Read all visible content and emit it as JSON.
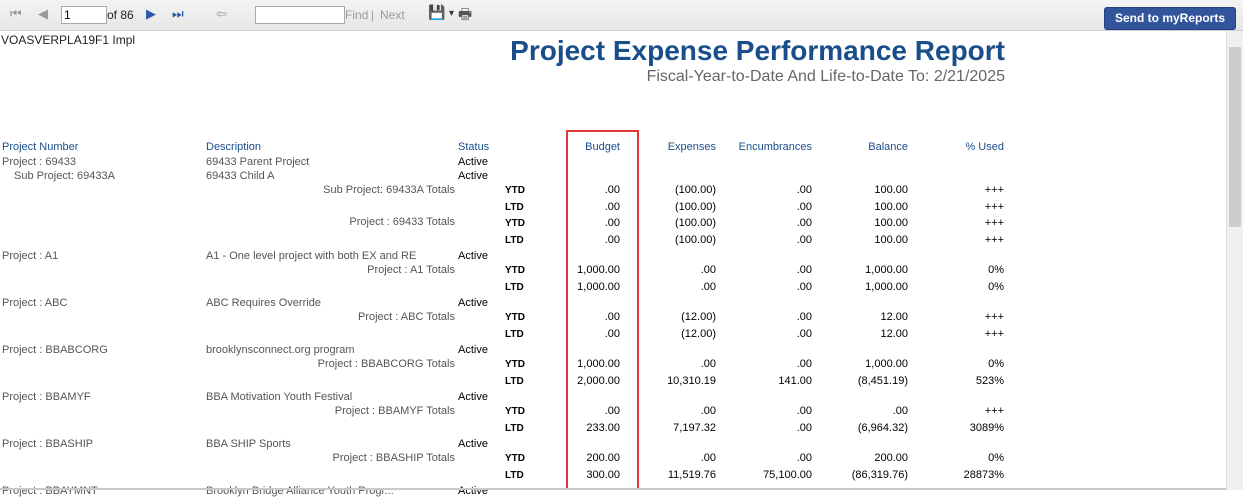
{
  "toolbar": {
    "first_icon": "⏮",
    "prev_icon": "◀",
    "page_value": "1",
    "of_label": "of 86",
    "next_icon": "▶",
    "last_icon": "⏭",
    "back_icon": "⇦",
    "find_value": "",
    "find_label": "Find",
    "separator": "|",
    "next_label": "Next",
    "export_icon": "💾",
    "dropdown_icon": "▾",
    "print_icon": "🖶",
    "send_label": "Send to myReports"
  },
  "report": {
    "logo_alt": "VOASVERPLA19F1 Impl",
    "title": "Project Expense Performance Report",
    "subtitle": "Fiscal-Year-to-Date And Life-to-Date To: 2/21/2025",
    "headers": {
      "project_number": "Project Number",
      "description": "Description",
      "status": "Status",
      "budget": "Budget",
      "expenses": "Expenses",
      "encumbrances": "Encumbrances",
      "balance": "Balance",
      "pct_used": "% Used"
    },
    "project_rows": [
      {
        "label": "Project : 69433",
        "desc": "69433 Parent Project",
        "status": "Active"
      },
      {
        "label": "Sub Project: 69433A",
        "desc": "69433 Child A",
        "status": "Active"
      },
      {
        "label": "Project : A1",
        "desc": "A1 - One level project with both EX and RE",
        "status": "Active"
      },
      {
        "label": "Project : ABC",
        "desc": "ABC Requires Override",
        "status": "Active"
      },
      {
        "label": "Project : BBABCORG",
        "desc": "brooklynsconnect.org program",
        "status": "Active"
      },
      {
        "label": "Project : BBAMYF",
        "desc": "BBA Motivation Youth Festival",
        "status": "Active"
      },
      {
        "label": "Project : BBASHIP",
        "desc": "BBA SHIP Sports",
        "status": "Active"
      },
      {
        "label": "Project : BBAYMNT",
        "desc": "Brooklyn Bridge Alliance Youth Progr...",
        "status": "Active"
      }
    ],
    "totals": [
      {
        "label": "Sub Project: 69433A Totals"
      },
      {
        "label": "Project : 69433 Totals"
      },
      {
        "label": "Project : A1 Totals"
      },
      {
        "label": "Project : ABC Totals"
      },
      {
        "label": "Project : BBABCORG Totals"
      },
      {
        "label": "Project : BBAMYF Totals"
      },
      {
        "label": "Project : BBASHIP Totals"
      }
    ],
    "lines": [
      {
        "kind": "YTD",
        "budget": ".00",
        "expenses": "(100.00)",
        "enc": ".00",
        "balance": "100.00",
        "pct": "+++"
      },
      {
        "kind": "LTD",
        "budget": ".00",
        "expenses": "(100.00)",
        "enc": ".00",
        "balance": "100.00",
        "pct": "+++"
      },
      {
        "kind": "YTD",
        "budget": ".00",
        "expenses": "(100.00)",
        "enc": ".00",
        "balance": "100.00",
        "pct": "+++"
      },
      {
        "kind": "LTD",
        "budget": ".00",
        "expenses": "(100.00)",
        "enc": ".00",
        "balance": "100.00",
        "pct": "+++"
      },
      {
        "kind": "YTD",
        "budget": "1,000.00",
        "expenses": ".00",
        "enc": ".00",
        "balance": "1,000.00",
        "pct": "0%"
      },
      {
        "kind": "LTD",
        "budget": "1,000.00",
        "expenses": ".00",
        "enc": ".00",
        "balance": "1,000.00",
        "pct": "0%"
      },
      {
        "kind": "YTD",
        "budget": ".00",
        "expenses": "(12.00)",
        "enc": ".00",
        "balance": "12.00",
        "pct": "+++"
      },
      {
        "kind": "LTD",
        "budget": ".00",
        "expenses": "(12.00)",
        "enc": ".00",
        "balance": "12.00",
        "pct": "+++"
      },
      {
        "kind": "YTD",
        "budget": "1,000.00",
        "expenses": ".00",
        "enc": ".00",
        "balance": "1,000.00",
        "pct": "0%"
      },
      {
        "kind": "LTD",
        "budget": "2,000.00",
        "expenses": "10,310.19",
        "enc": "141.00",
        "balance": "(8,451.19)",
        "pct": "523%"
      },
      {
        "kind": "YTD",
        "budget": ".00",
        "expenses": ".00",
        "enc": ".00",
        "balance": ".00",
        "pct": "+++"
      },
      {
        "kind": "LTD",
        "budget": "233.00",
        "expenses": "7,197.32",
        "enc": ".00",
        "balance": "(6,964.32)",
        "pct": "3089%"
      },
      {
        "kind": "YTD",
        "budget": "200.00",
        "expenses": ".00",
        "enc": ".00",
        "balance": "200.00",
        "pct": "0%"
      },
      {
        "kind": "LTD",
        "budget": "300.00",
        "expenses": "11,519.76",
        "enc": "75,100.00",
        "balance": "(86,319.76)",
        "pct": "28873%"
      }
    ]
  }
}
